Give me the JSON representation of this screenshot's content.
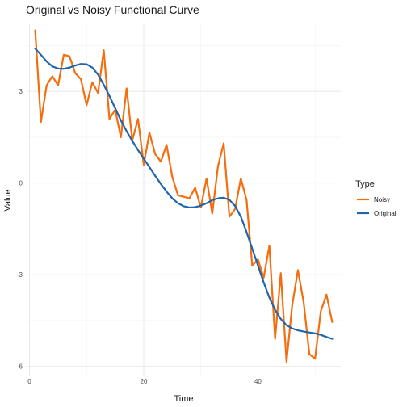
{
  "chart_data": {
    "type": "line",
    "title": "Original vs Noisy Functional Curve",
    "xlabel": "Time",
    "ylabel": "Value",
    "xlim": [
      -0.5,
      54.5
    ],
    "ylim": [
      -6.3,
      5.2
    ],
    "x_ticks": [
      0,
      20,
      40
    ],
    "x_tick_labels": [
      "0",
      "20",
      "40"
    ],
    "y_ticks": [
      -6,
      -3,
      0,
      3
    ],
    "y_tick_labels": [
      "-6",
      "-3",
      "0",
      "3"
    ],
    "grid": true,
    "legend": {
      "title": "Type",
      "position": "right",
      "entries": [
        "Noisy",
        "Original"
      ]
    },
    "x": [
      1,
      2,
      3,
      4,
      5,
      6,
      7,
      8,
      9,
      10,
      11,
      12,
      13,
      14,
      15,
      16,
      17,
      18,
      19,
      20,
      21,
      22,
      23,
      24,
      25,
      26,
      27,
      28,
      29,
      30,
      31,
      32,
      33,
      34,
      35,
      36,
      37,
      38,
      39,
      40,
      41,
      42,
      43,
      44,
      45,
      46,
      47,
      48,
      49,
      50,
      51,
      52,
      53
    ],
    "series": [
      {
        "name": "Noisy",
        "color": "#f46d0e",
        "values": [
          5.0,
          2.0,
          3.2,
          3.5,
          3.2,
          4.2,
          4.15,
          3.6,
          3.4,
          2.55,
          3.3,
          2.95,
          4.35,
          2.1,
          2.4,
          1.5,
          3.1,
          1.4,
          2.1,
          0.6,
          1.65,
          0.95,
          0.7,
          1.25,
          0.2,
          -0.4,
          -0.45,
          -0.5,
          -0.15,
          -0.8,
          0.15,
          -1.0,
          0.55,
          1.3,
          -1.1,
          -0.85,
          0.15,
          -0.55,
          -2.7,
          -2.5,
          -3.1,
          -2.05,
          -5.1,
          -2.95,
          -5.85,
          -4.0,
          -2.85,
          -3.9,
          -5.6,
          -5.75,
          -4.2,
          -3.65,
          -4.55
        ]
      },
      {
        "name": "Original",
        "color": "#2166ac",
        "values": [
          4.4,
          4.2,
          3.98,
          3.82,
          3.75,
          3.74,
          3.78,
          3.85,
          3.9,
          3.89,
          3.78,
          3.55,
          3.22,
          2.85,
          2.45,
          2.05,
          1.7,
          1.38,
          1.08,
          0.8,
          0.52,
          0.24,
          -0.03,
          -0.28,
          -0.5,
          -0.66,
          -0.76,
          -0.8,
          -0.79,
          -0.74,
          -0.66,
          -0.56,
          -0.5,
          -0.48,
          -0.55,
          -0.75,
          -1.1,
          -1.6,
          -2.15,
          -2.7,
          -3.25,
          -3.75,
          -4.15,
          -4.45,
          -4.65,
          -4.76,
          -4.82,
          -4.86,
          -4.89,
          -4.92,
          -4.97,
          -5.04,
          -5.1
        ]
      }
    ]
  }
}
